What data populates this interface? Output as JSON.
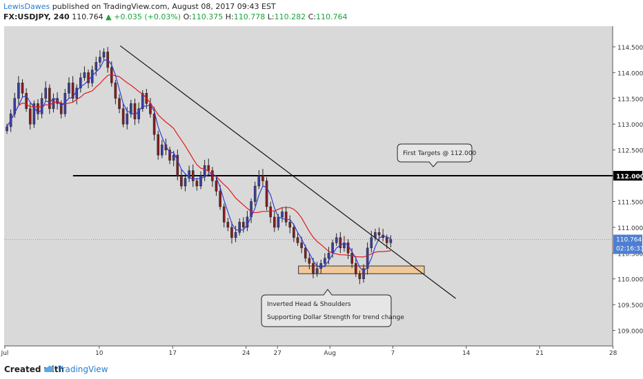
{
  "header": {
    "author": "LewisDawes",
    "published_text": "published on TradingView.com, August 08, 2017 09:43 EST",
    "symbol": "FX:USDJPY, 240",
    "last": "110.764",
    "change": "+0.035 (+0.03%)",
    "o_label": "O:",
    "o": "110.375",
    "h_label": "H:",
    "h": "110.778",
    "l_label": "L:",
    "l": "110.282",
    "c_label": "C:",
    "c": "110.764"
  },
  "footer": {
    "created_with": "Created with",
    "brand": "TradingView"
  },
  "colors": {
    "background": "#d9d9d9",
    "bull_candle": "#3b3f9c",
    "bear_candle": "#8a1d1d",
    "ma_fast": "#2f3fd6",
    "ma_slow": "#e01a1a",
    "trendline": "#111111",
    "support_zone": "#f0c89a",
    "last_price_line": "#7f9fd6"
  },
  "chart_data": {
    "type": "candlestick",
    "symbol": "USDJPY",
    "timeframe": "240",
    "x_ticks": [
      "Jul",
      "10",
      "17",
      "24",
      "27",
      "Aug",
      "7",
      "14",
      "21",
      "28"
    ],
    "y_ticks": [
      "114.500",
      "114.000",
      "113.500",
      "113.000",
      "112.500",
      "112.000",
      "111.500",
      "111.000",
      "110.500",
      "110.000",
      "109.500",
      "109.000"
    ],
    "ylim": [
      108.7,
      114.9
    ],
    "candles_close": [
      112.95,
      113.2,
      113.5,
      113.8,
      113.6,
      113.3,
      113.0,
      113.4,
      113.2,
      113.5,
      113.7,
      113.3,
      113.5,
      113.4,
      113.2,
      113.6,
      113.8,
      113.5,
      113.7,
      113.9,
      114.0,
      113.8,
      114.05,
      114.2,
      114.3,
      114.4,
      114.1,
      113.8,
      113.5,
      113.3,
      113.0,
      113.2,
      113.4,
      113.1,
      113.3,
      113.6,
      113.4,
      113.2,
      112.8,
      112.4,
      112.6,
      112.5,
      112.3,
      112.4,
      112.0,
      111.8,
      111.95,
      112.1,
      111.9,
      111.8,
      112.0,
      112.2,
      112.1,
      111.9,
      111.7,
      111.4,
      111.1,
      111.0,
      110.8,
      110.9,
      111.1,
      111.0,
      111.2,
      111.5,
      111.8,
      112.0,
      111.9,
      111.4,
      111.2,
      111.0,
      111.2,
      111.3,
      111.1,
      111.0,
      110.8,
      110.7,
      110.6,
      110.4,
      110.3,
      110.1,
      110.2,
      110.3,
      110.4,
      110.5,
      110.7,
      110.8,
      110.6,
      110.7,
      110.5,
      110.3,
      110.1,
      110.0,
      110.2,
      110.6,
      110.8,
      110.9,
      110.85,
      110.8,
      110.7,
      110.764
    ],
    "indicators": [
      {
        "type": "moving_average",
        "color": "#2f3fd6"
      },
      {
        "type": "moving_average",
        "color": "#e01a1a"
      }
    ],
    "horizontal_level": {
      "value": 112.0,
      "label": "112.000"
    },
    "last_price": {
      "value": 110.764,
      "label": "110.764",
      "countdown": "02:16:33"
    },
    "trendline": {
      "from": {
        "x": "Jul 12",
        "y": 114.52
      },
      "to": {
        "x": "Aug 13",
        "y": 109.62
      }
    },
    "support_zone": {
      "low": 110.1,
      "high": 110.25,
      "from": "Jul 29",
      "to": "Aug 10"
    },
    "annotations": [
      {
        "text": "First Targets @ 112.000"
      },
      {
        "lines": [
          "Inverted Head & Shoulders",
          "Supporting Dollar Strength for trend change"
        ]
      }
    ]
  }
}
